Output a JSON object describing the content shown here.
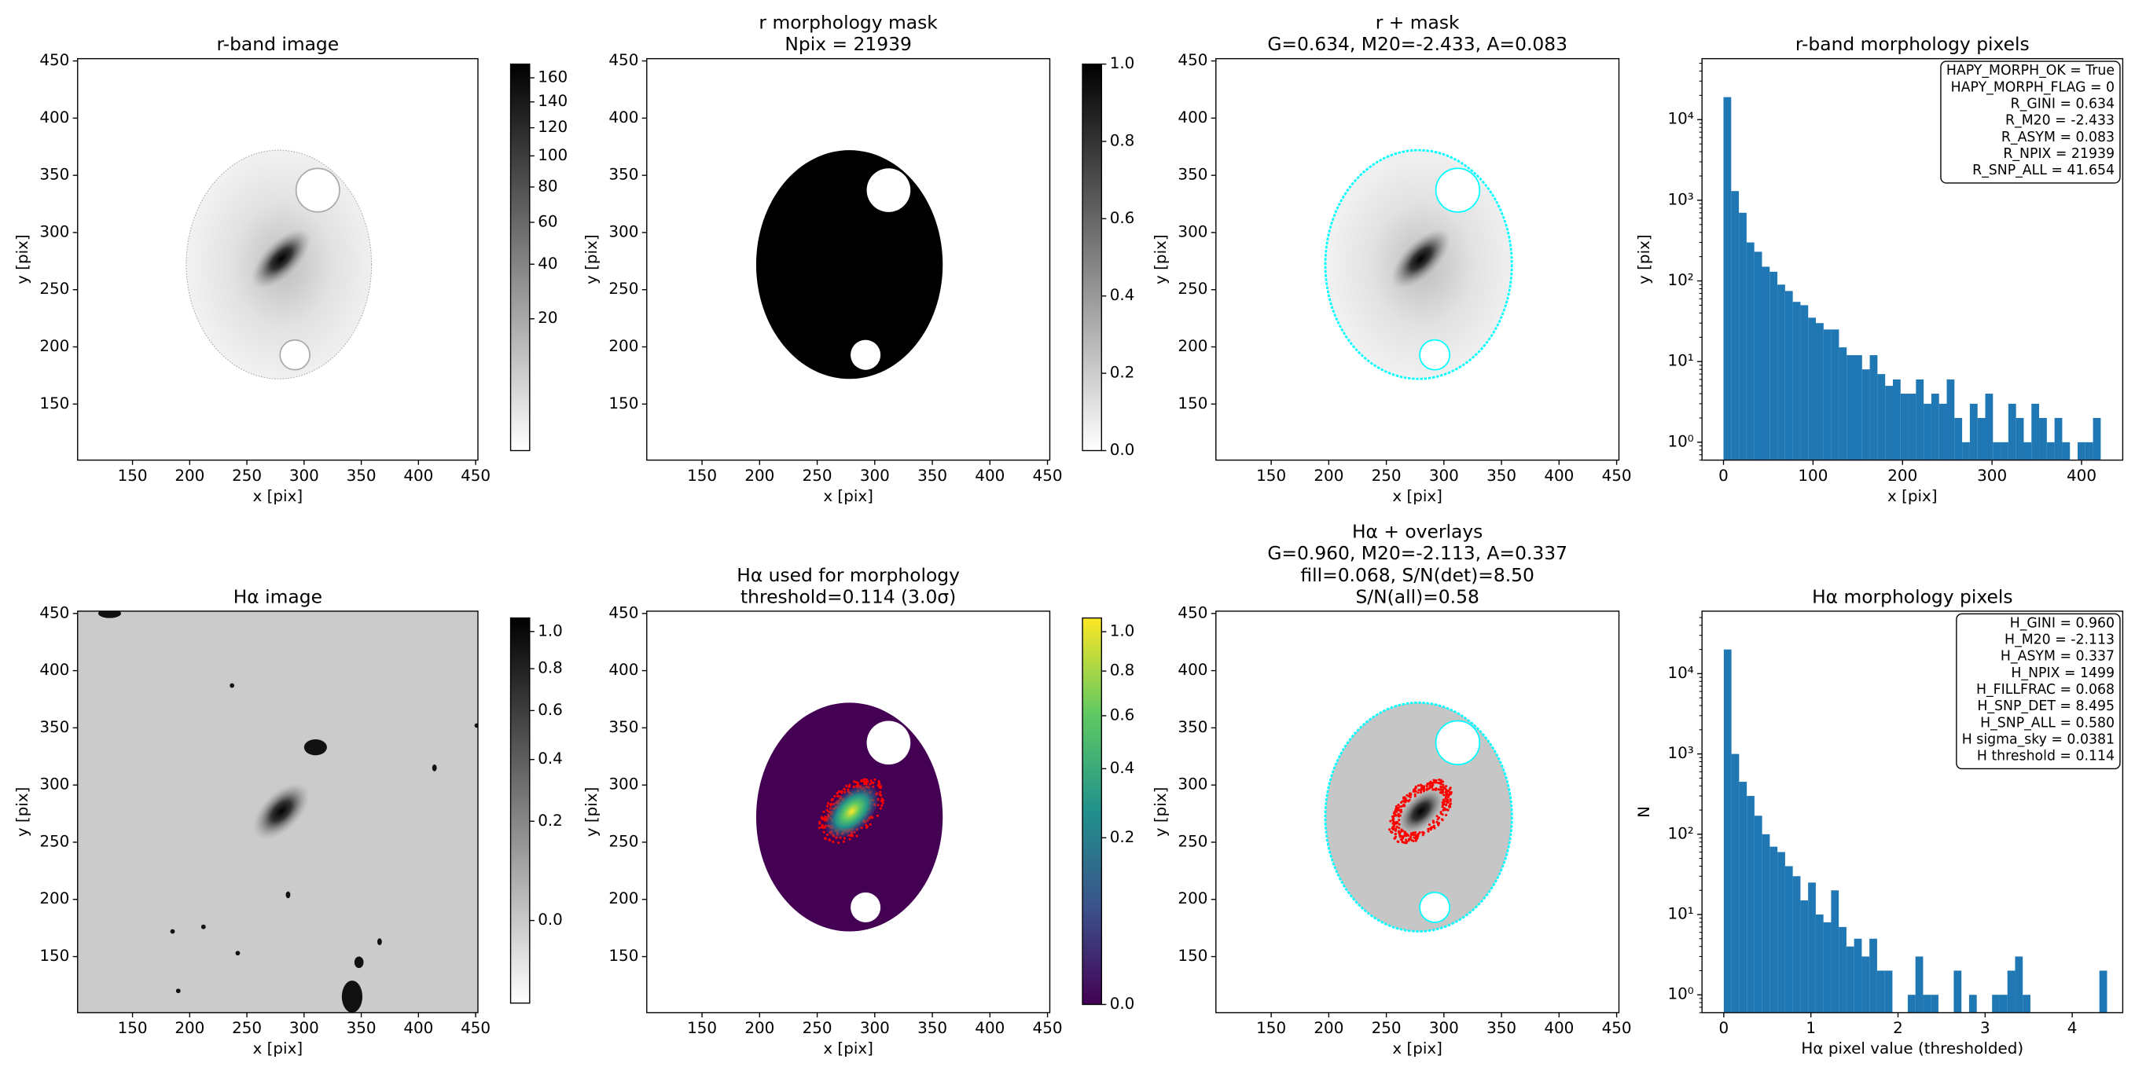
{
  "chart_data": [
    {
      "type": "image",
      "title": [
        "r-band image"
      ],
      "xlabel": "x [pix]",
      "ylabel": "y [pix]",
      "xlim": [
        102,
        452
      ],
      "ylim": [
        101,
        452
      ],
      "xticks": [
        150,
        200,
        250,
        300,
        350,
        400,
        450
      ],
      "yticks": [
        150,
        200,
        250,
        300,
        350,
        400,
        450
      ],
      "colormap": "gray_r",
      "colorbar": {
        "lim": [
          0,
          172
        ],
        "stretch": "sqrt",
        "ticks": [
          20,
          40,
          60,
          80,
          100,
          120,
          140,
          160
        ]
      }
    },
    {
      "type": "image",
      "title": [
        "r morphology mask",
        "Npix = 21939"
      ],
      "xlabel": "x [pix]",
      "ylabel": "y [pix]",
      "xlim": [
        102,
        452
      ],
      "ylim": [
        101,
        452
      ],
      "xticks": [
        150,
        200,
        250,
        300,
        350,
        400,
        450
      ],
      "yticks": [
        150,
        200,
        250,
        300,
        350,
        400,
        450
      ],
      "colormap": "gray_r",
      "colorbar": {
        "lim": [
          0,
          1
        ],
        "stretch": "linear",
        "ticks": [
          {
            "value": 0,
            "label": "0.0"
          },
          0.2,
          0.4,
          0.6,
          0.8,
          {
            "value": 1,
            "label": "1.0"
          }
        ]
      }
    },
    {
      "type": "image",
      "title": [
        "r + mask",
        "G=0.634, M20=-2.433, A=0.083"
      ],
      "xlabel": "x [pix]",
      "ylabel": "y [pix]",
      "xlim": [
        102,
        452
      ],
      "ylim": [
        101,
        452
      ],
      "xticks": [
        150,
        200,
        250,
        300,
        350,
        400,
        450
      ],
      "yticks": [
        150,
        200,
        250,
        300,
        350,
        400,
        450
      ],
      "colormap": "gray_r",
      "outline_color": "#00ffff"
    },
    {
      "type": "histogram",
      "title": [
        "r-band morphology pixels"
      ],
      "xlabel": "x [pix]",
      "ylabel": "y [pix]",
      "color": "#1f77b4",
      "xlim": [
        -24,
        446
      ],
      "ylim": [
        0.6,
        57000
      ],
      "log_y": true,
      "xticks": [
        0,
        100,
        200,
        300,
        400
      ],
      "yticks": [
        {
          "value": 1,
          "label": "10⁰"
        },
        {
          "value": 10,
          "label": "10¹"
        },
        {
          "value": 100,
          "label": "10²"
        },
        {
          "value": 1000,
          "label": "10³"
        },
        {
          "value": 10000,
          "label": "10⁴"
        }
      ],
      "bins": [
        0,
        8.6,
        17.2,
        25.8,
        34.4,
        43,
        51.6,
        60.2,
        68.8,
        77.4,
        86,
        94.6,
        103.2,
        111.8,
        120.4,
        129,
        137.6,
        146.2,
        154.8,
        163.4,
        172,
        180.6,
        189.2,
        197.8,
        206.4,
        215,
        223.6,
        232.2,
        240.8,
        249.4,
        258,
        266.6,
        275.2,
        283.8,
        292.4,
        301,
        309.6,
        318.2,
        326.8,
        335.4,
        344,
        352.6,
        361.2,
        369.8,
        378.4,
        387,
        395.6,
        404.2,
        412.8,
        421.4,
        430
      ],
      "counts": [
        19000,
        1300,
        700,
        300,
        230,
        150,
        130,
        90,
        75,
        55,
        50,
        35,
        30,
        25,
        25,
        15,
        12,
        12,
        8,
        12,
        7,
        5,
        6,
        4,
        4,
        6,
        3,
        4,
        3,
        6,
        2,
        1,
        3,
        2,
        4,
        1,
        1,
        3,
        2,
        1,
        3,
        2,
        1,
        2,
        1,
        0,
        1,
        1,
        2,
        0
      ],
      "annotation": [
        "HAPY_MORPH_OK = True",
        "HAPY_MORPH_FLAG = 0",
        "R_GINI = 0.634",
        "R_M20 = -2.433",
        "R_ASYM = 0.083",
        "R_NPIX = 21939",
        "R_SNP_ALL = 41.654"
      ]
    },
    {
      "type": "image",
      "title": [
        "Hα image"
      ],
      "xlabel": "x [pix]",
      "ylabel": "y [pix]",
      "xlim": [
        102,
        452
      ],
      "ylim": [
        101,
        452
      ],
      "xticks": [
        150,
        200,
        250,
        300,
        350,
        400,
        450
      ],
      "yticks": [
        150,
        200,
        250,
        300,
        350,
        400,
        450
      ],
      "colormap": "gray_r",
      "colorbar": {
        "lim": [
          -0.052,
          1.078
        ],
        "stretch": "sqrt",
        "ticks": [
          {
            "value": 0,
            "label": "0.0"
          },
          0.2,
          0.4,
          0.6,
          0.8,
          {
            "value": 1,
            "label": "1.0"
          }
        ]
      }
    },
    {
      "type": "image",
      "title": [
        "Hα used for morphology",
        "threshold=0.114 (3.0σ)"
      ],
      "xlabel": "x [pix]",
      "ylabel": "y [pix]",
      "xlim": [
        102,
        452
      ],
      "ylim": [
        101,
        452
      ],
      "xticks": [
        150,
        200,
        250,
        300,
        350,
        400,
        450
      ],
      "yticks": [
        150,
        200,
        250,
        300,
        350,
        400,
        450
      ],
      "colormap": "viridis",
      "points_color": "#ff0000",
      "colorbar": {
        "lim": [
          0,
          1.075
        ],
        "stretch": "sqrt",
        "ticks": [
          {
            "value": 0,
            "label": "0.0"
          },
          0.2,
          0.4,
          0.6,
          0.8,
          {
            "value": 1,
            "label": "1.0"
          }
        ]
      }
    },
    {
      "type": "image",
      "title": [
        "Hα + overlays",
        "G=0.960, M20=-2.113, A=0.337",
        "fill=0.068, S/N(det)=8.50",
        "S/N(all)=0.58"
      ],
      "xlabel": "x [pix]",
      "ylabel": "y [pix]",
      "xlim": [
        102,
        452
      ],
      "ylim": [
        101,
        452
      ],
      "xticks": [
        150,
        200,
        250,
        300,
        350,
        400,
        450
      ],
      "yticks": [
        150,
        200,
        250,
        300,
        350,
        400,
        450
      ],
      "colormap": "gray_r",
      "outline_color": "#00ffff",
      "points_color": "#ff0000"
    },
    {
      "type": "histogram",
      "title": [
        "Hα morphology pixels"
      ],
      "xlabel": "Hα pixel value (thresholded)",
      "ylabel": "N",
      "color": "#1f77b4",
      "xlim": [
        -0.25,
        4.58
      ],
      "ylim": [
        0.6,
        60000
      ],
      "log_y": true,
      "xticks": [
        0,
        1,
        2,
        3,
        4
      ],
      "yticks": [
        {
          "value": 1,
          "label": "10⁰"
        },
        {
          "value": 10,
          "label": "10¹"
        },
        {
          "value": 100,
          "label": "10²"
        },
        {
          "value": 1000,
          "label": "10³"
        },
        {
          "value": 10000,
          "label": "10⁴"
        }
      ],
      "bins": [
        0,
        0.088,
        0.176,
        0.264,
        0.352,
        0.44,
        0.528,
        0.616,
        0.704,
        0.792,
        0.88,
        0.968,
        1.056,
        1.144,
        1.232,
        1.32,
        1.408,
        1.496,
        1.584,
        1.672,
        1.76,
        1.848,
        1.936,
        2.024,
        2.112,
        2.2,
        2.288,
        2.376,
        2.464,
        2.552,
        2.64,
        2.728,
        2.816,
        2.904,
        2.992,
        3.08,
        3.168,
        3.256,
        3.344,
        3.432,
        3.52,
        3.608,
        3.696,
        3.784,
        3.872,
        3.96,
        4.048,
        4.136,
        4.224,
        4.312,
        4.4
      ],
      "counts": [
        20000,
        1000,
        450,
        300,
        170,
        100,
        70,
        60,
        40,
        30,
        15,
        25,
        10,
        8,
        20,
        7,
        4,
        5,
        3,
        5,
        2,
        2,
        0,
        0,
        1,
        3,
        1,
        1,
        0,
        0,
        2,
        0,
        1,
        0,
        0,
        1,
        1,
        2,
        3,
        1,
        0,
        0,
        0,
        0,
        0,
        0,
        0,
        0,
        0,
        2
      ],
      "annotation": [
        "H_GINI = 0.960",
        "H_M20 = -2.113",
        "H_ASYM = 0.337",
        "H_NPIX = 1499",
        "H_FILLFRAC = 0.068",
        "H_SNP_DET = 8.495",
        "H_SNP_ALL = 0.580",
        "H sigma_sky = 0.0381",
        "H threshold = 0.114"
      ]
    }
  ]
}
